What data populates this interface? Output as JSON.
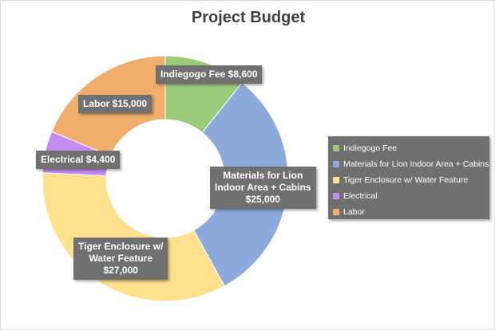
{
  "chart_data": {
    "type": "pie",
    "title": "Project Budget",
    "categories": [
      "Indiegogo Fee",
      "Materials for Lion Indoor Area + Cabins",
      "Tiger Enclosure w/ Water Feature",
      "Electrical",
      "Labor"
    ],
    "values": [
      8600,
      25000,
      27000,
      4400,
      15000
    ],
    "colors": [
      "#9dc97a",
      "#8eaadb",
      "#ffe08c",
      "#c58bf0",
      "#f0ae6c"
    ],
    "data_labels": [
      [
        "Indiegogo Fee $8,600"
      ],
      [
        "Materials for Lion",
        "Indoor Area + Cabins",
        "$25,000"
      ],
      [
        "Tiger Enclosure w/",
        "Water Feature",
        "$27,000"
      ],
      [
        "Electrical $4,400"
      ],
      [
        "Labor $15,000"
      ]
    ],
    "legend_position": "right"
  }
}
